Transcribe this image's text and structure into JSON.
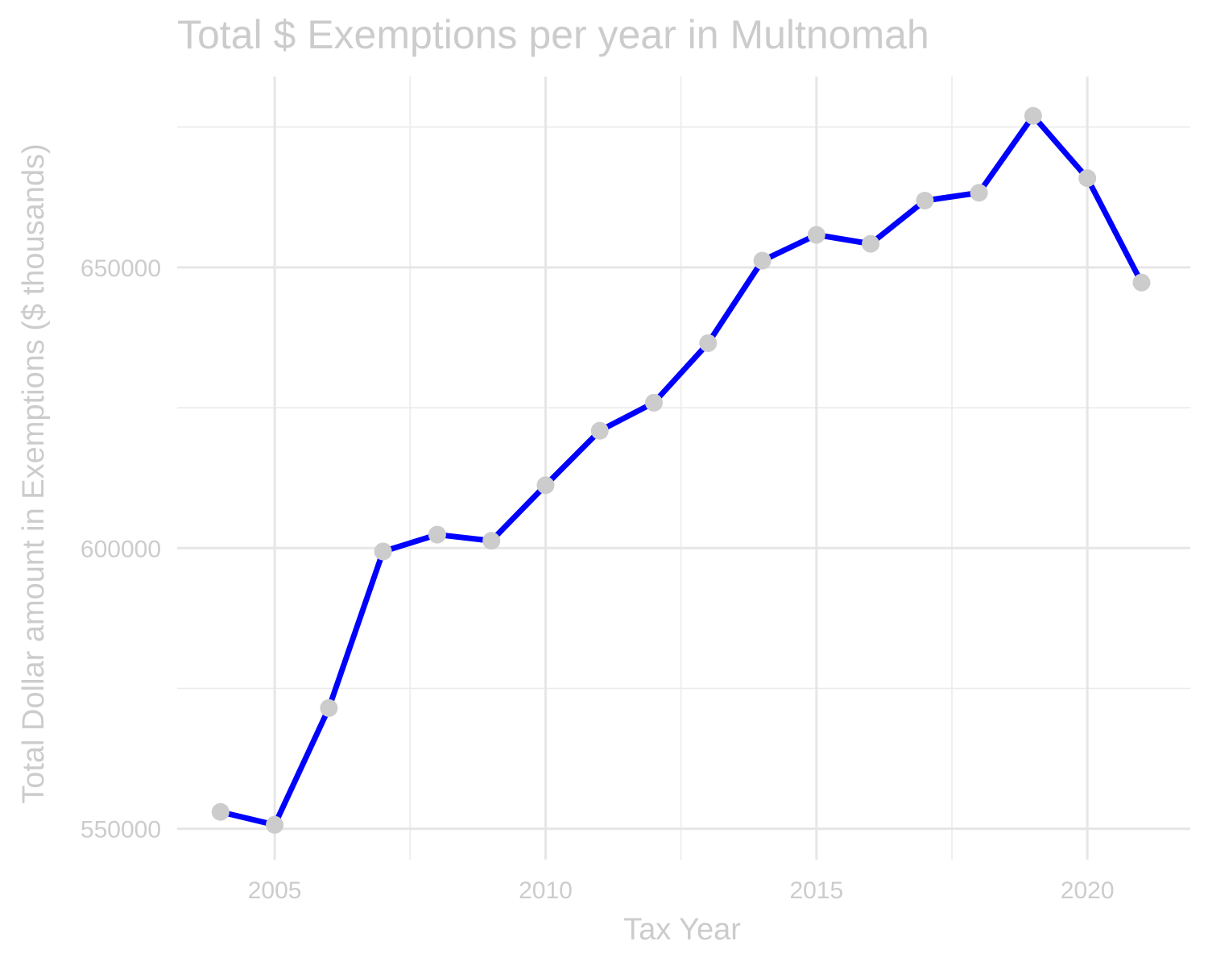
{
  "chart_data": {
    "type": "line",
    "title": "Total $ Exemptions per year in Multnomah",
    "xlabel": "Tax Year",
    "ylabel": "Total Dollar amount in Exemptions ($ thousands)",
    "x_ticks": [
      2005,
      2010,
      2015,
      2020
    ],
    "y_ticks": [
      550000,
      600000,
      650000
    ],
    "xlim": [
      2003.2,
      2021.9
    ],
    "ylim": [
      544500,
      684000
    ],
    "grid": true,
    "series": [
      {
        "line_color": "#0000ff",
        "point_color": "#cccccc",
        "x": [
          2004,
          2005,
          2006,
          2007,
          2008,
          2009,
          2010,
          2011,
          2012,
          2013,
          2014,
          2015,
          2016,
          2017,
          2018,
          2019,
          2020,
          2021
        ],
        "values": [
          553000,
          550700,
          571500,
          599400,
          602400,
          601300,
          611200,
          620900,
          625900,
          636500,
          651200,
          655800,
          654200,
          661900,
          663300,
          677000,
          665900,
          647300
        ]
      }
    ]
  }
}
